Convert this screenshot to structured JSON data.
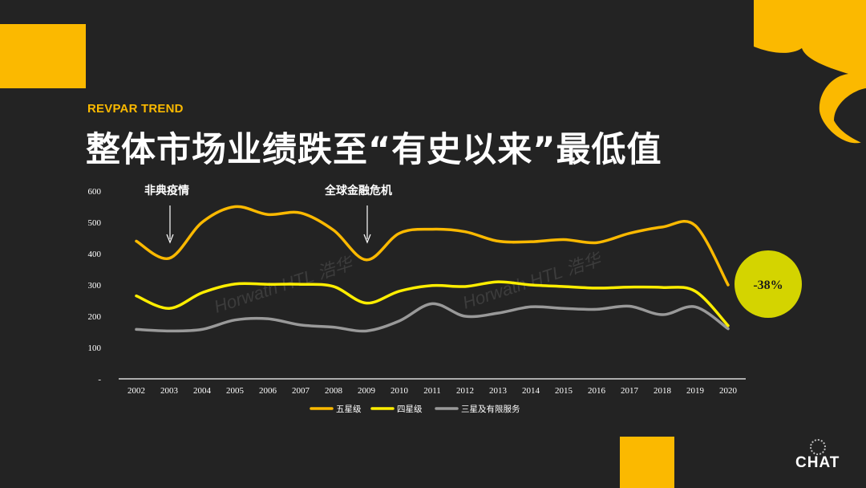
{
  "header": {
    "kicker": "REVPAR TREND",
    "title": "整体市场业绩跌至“有史以来”最低值"
  },
  "brand": {
    "name": "CHAT"
  },
  "watermark": "Horwath HTL 浩华",
  "colors": {
    "background": "#232323",
    "accent": "#fbb900",
    "five_star": "#fbb900",
    "four_star": "#ffee00",
    "three_star": "#999999",
    "badge": "#d4d400"
  },
  "chart_data": {
    "type": "line",
    "categories": [
      "2002",
      "2003",
      "2004",
      "2005",
      "2006",
      "2007",
      "2008",
      "2009",
      "2010",
      "2011",
      "2012",
      "2013",
      "2014",
      "2015",
      "2016",
      "2017",
      "2018",
      "2019",
      "2020"
    ],
    "ylim": [
      0,
      600
    ],
    "y_ticks": [
      "-",
      "100",
      "200",
      "300",
      "400",
      "500",
      "600"
    ],
    "xlabel": "",
    "ylabel": "",
    "grid": false,
    "legend_position": "bottom",
    "series": [
      {
        "name": "五星级",
        "color": "#fbb900",
        "values": [
          440,
          385,
          500,
          550,
          525,
          530,
          475,
          380,
          465,
          478,
          470,
          440,
          438,
          445,
          435,
          465,
          485,
          490,
          300
        ]
      },
      {
        "name": "四星级",
        "color": "#ffee00",
        "values": [
          265,
          225,
          275,
          303,
          302,
          302,
          295,
          242,
          280,
          298,
          295,
          310,
          300,
          295,
          290,
          293,
          292,
          280,
          170
        ]
      },
      {
        "name": "三星及有限服务",
        "color": "#999999",
        "values": [
          158,
          153,
          158,
          188,
          192,
          172,
          165,
          153,
          185,
          240,
          200,
          210,
          230,
          225,
          222,
          232,
          205,
          230,
          160
        ]
      }
    ],
    "annotations": [
      {
        "text": "非典疫情",
        "x": "2003"
      },
      {
        "text": "全球金融危机",
        "x": "2009"
      }
    ],
    "callout": {
      "text": "-38%",
      "x": "2020"
    }
  }
}
